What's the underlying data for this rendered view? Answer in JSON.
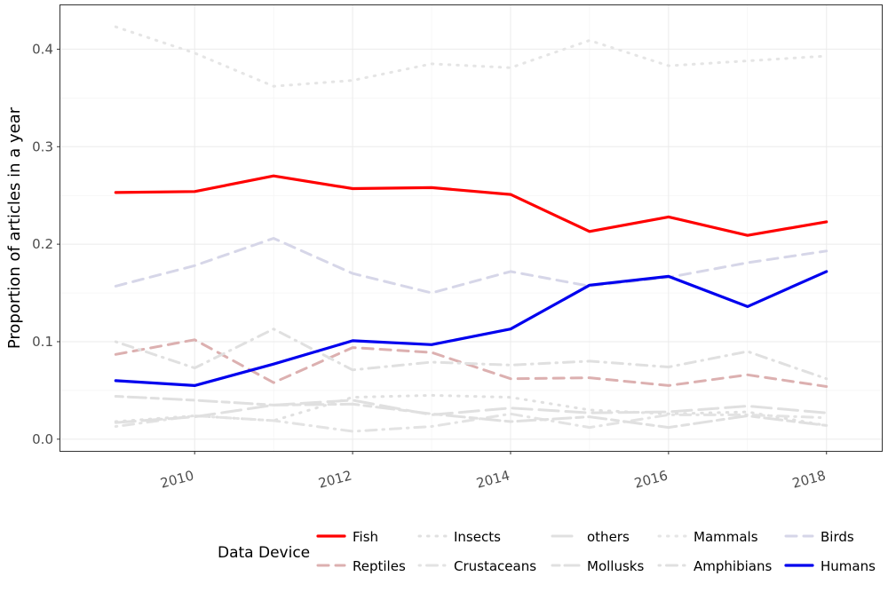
{
  "chart_data": {
    "type": "line",
    "title": "",
    "xlabel": "",
    "ylabel": "Proportion of articles in a year",
    "x": [
      2009,
      2010,
      2011,
      2012,
      2013,
      2014,
      2015,
      2016,
      2017,
      2018
    ],
    "xlim": [
      2008.3,
      2018.7
    ],
    "ylim": [
      -0.012,
      0.445
    ],
    "x_ticks": [
      2010,
      2012,
      2014,
      2016,
      2018
    ],
    "x_tick_labels": [
      "2010",
      "2012",
      "2014",
      "2016",
      "2018"
    ],
    "y_ticks": [
      0.0,
      0.1,
      0.2,
      0.3,
      0.4
    ],
    "y_tick_labels": [
      "0.0",
      "0.1",
      "0.2",
      "0.3",
      "0.4"
    ],
    "grid": true,
    "legend_title": "Data Device",
    "legend_position": "bottom-right",
    "series": [
      {
        "name": "Fish",
        "color": "#ff0000",
        "dash": "solid",
        "width": 3.2,
        "values": [
          0.253,
          0.254,
          0.27,
          0.257,
          0.258,
          0.251,
          0.213,
          0.228,
          0.209,
          0.223
        ]
      },
      {
        "name": "Reptiles",
        "color": "#dcb0b0",
        "dash": "dashed",
        "width": 3,
        "values": [
          0.087,
          0.102,
          0.058,
          0.094,
          0.089,
          0.062,
          0.063,
          0.055,
          0.066,
          0.054
        ]
      },
      {
        "name": "Insects",
        "color": "#e0e0e0",
        "dash": "dotted",
        "width": 3,
        "values": [
          0.018,
          0.024,
          0.019,
          0.043,
          0.045,
          0.043,
          0.03,
          0.026,
          0.028,
          0.014
        ]
      },
      {
        "name": "Crustaceans",
        "color": "#e3e3e3",
        "dash": "dotdash",
        "width": 3,
        "values": [
          0.013,
          0.024,
          0.019,
          0.008,
          0.013,
          0.026,
          0.012,
          0.025,
          0.025,
          0.022
        ]
      },
      {
        "name": "others",
        "color": "#e0e0e0",
        "dash": "longdash",
        "width": 3,
        "values": [
          0.017,
          0.023,
          0.035,
          0.04,
          0.025,
          0.032,
          0.027,
          0.028,
          0.034,
          0.027
        ]
      },
      {
        "name": "Mollusks",
        "color": "#e0e0e0",
        "dash": "twodash",
        "width": 3,
        "values": [
          0.044,
          0.04,
          0.035,
          0.036,
          0.026,
          0.018,
          0.023,
          0.012,
          0.024,
          0.014
        ]
      },
      {
        "name": "Mammals",
        "color": "#e5e5e5",
        "dash": "dotted",
        "width": 3,
        "values": [
          0.423,
          0.396,
          0.362,
          0.368,
          0.385,
          0.381,
          0.409,
          0.383,
          0.388,
          0.393
        ]
      },
      {
        "name": "Amphibians",
        "color": "#e0e0e0",
        "dash": "dotdash",
        "width": 3,
        "values": [
          0.1,
          0.073,
          0.113,
          0.071,
          0.079,
          0.076,
          0.08,
          0.074,
          0.09,
          0.062
        ]
      },
      {
        "name": "Birds",
        "color": "#d6d6e8",
        "dash": "dashed",
        "width": 3,
        "values": [
          0.157,
          0.178,
          0.206,
          0.17,
          0.15,
          0.172,
          0.157,
          0.166,
          0.181,
          0.193
        ]
      },
      {
        "name": "Humans",
        "color": "#0000ee",
        "dash": "solid",
        "width": 3.2,
        "values": [
          0.06,
          0.055,
          0.077,
          0.101,
          0.097,
          0.113,
          0.158,
          0.167,
          0.136,
          0.172
        ]
      }
    ]
  }
}
